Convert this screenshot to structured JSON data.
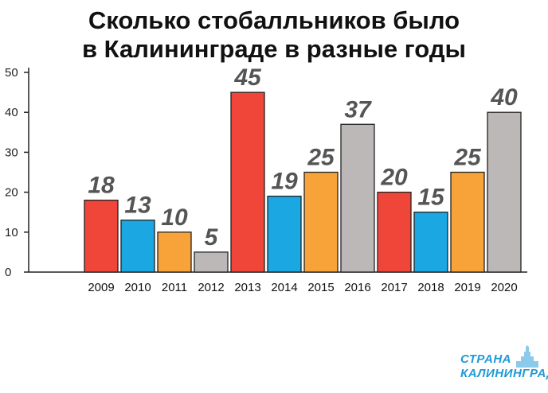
{
  "title_line1": "Сколько стобалльников было",
  "title_line2": "в Калининграде в разные годы",
  "chart_data": {
    "type": "bar",
    "categories": [
      "2009",
      "2010",
      "2011",
      "2012",
      "2013",
      "2014",
      "2015",
      "2016",
      "2017",
      "2018",
      "2019",
      "2020"
    ],
    "values": [
      18,
      13,
      10,
      5,
      45,
      19,
      25,
      37,
      20,
      15,
      25,
      40
    ],
    "bar_colors": [
      "#f0463a",
      "#1aa7e2",
      "#f8a23a",
      "#bdb8b8",
      "#f0463a",
      "#1aa7e2",
      "#f8a23a",
      "#bdb8b8",
      "#f0463a",
      "#1aa7e2",
      "#f8a23a",
      "#bdb8b8"
    ],
    "value_label_color": "#555555",
    "yticks": [
      0,
      10,
      20,
      30,
      40,
      50
    ],
    "ylim": [
      0,
      50
    ],
    "grid": false,
    "legend": "none",
    "xlabel": "",
    "ylabel": ""
  },
  "logo": {
    "line1": "СТРАНА",
    "line2": "КАЛИНИНГРАД",
    "color": "#1f9ad6"
  }
}
